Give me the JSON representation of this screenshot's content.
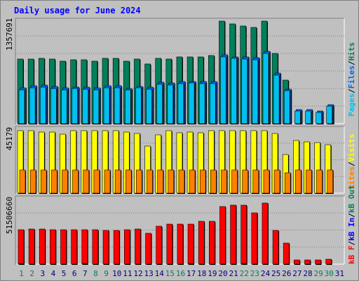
{
  "chart_data": [
    {
      "type": "bar",
      "panel": "hits-files-pages",
      "title": "Daily usage for June 2024",
      "categories": [
        "1",
        "2",
        "3",
        "4",
        "5",
        "6",
        "7",
        "8",
        "9",
        "10",
        "11",
        "12",
        "13",
        "14",
        "15",
        "16",
        "17",
        "18",
        "19",
        "20",
        "21",
        "22",
        "23",
        "24",
        "25",
        "26",
        "27",
        "28",
        "29",
        "30",
        "31"
      ],
      "weekend_days": [
        "1",
        "2",
        "8",
        "9",
        "15",
        "16",
        "22",
        "23",
        "29",
        "30"
      ],
      "ylabel_tick": "1357691",
      "ylim": [
        0,
        1357691
      ],
      "series": [
        {
          "name": "Hits",
          "color": "#00805c",
          "values": [
            858000,
            858000,
            864000,
            852000,
            828000,
            848000,
            844000,
            832000,
            868000,
            868000,
            826000,
            854000,
            786000,
            868000,
            860000,
            880000,
            884000,
            880000,
            902000,
            1357691,
            1318000,
            1297000,
            1272000,
            1357691,
            928000,
            580000,
            0,
            0,
            0,
            0,
            0
          ]
        },
        {
          "name": "Files",
          "color": "#0066f0",
          "values": [
            472000,
            498000,
            509000,
            492000,
            471000,
            487000,
            481000,
            472000,
            498000,
            498000,
            468000,
            494000,
            483000,
            547000,
            535000,
            557000,
            562000,
            554000,
            554000,
            909000,
            886000,
            882000,
            871000,
            954000,
            670000,
            460000,
            190000,
            190000,
            170000,
            248000,
            0
          ]
        },
        {
          "name": "Pages",
          "color": "#00c0f0",
          "values": [
            448000,
            474000,
            485000,
            468000,
            447000,
            463000,
            457000,
            448000,
            474000,
            474000,
            444000,
            470000,
            459000,
            523000,
            511000,
            533000,
            538000,
            530000,
            530000,
            885000,
            862000,
            858000,
            847000,
            930000,
            646000,
            436000,
            170000,
            170000,
            150000,
            230000,
            0
          ]
        }
      ]
    },
    {
      "type": "bar",
      "panel": "visits-sites",
      "ylabel_tick": "45179",
      "ylim": [
        0,
        45179
      ],
      "series": [
        {
          "name": "Visits",
          "color": "#ffff00",
          "values": [
            45179,
            45179,
            44000,
            44000,
            42500,
            45179,
            45179,
            45179,
            45179,
            45179,
            44000,
            43000,
            34000,
            42000,
            45000,
            43500,
            44000,
            43500,
            45179,
            45179,
            45179,
            45179,
            45179,
            45179,
            43000,
            28000,
            38000,
            37000,
            36500,
            35000,
            0
          ]
        },
        {
          "name": "Sites",
          "color": "#ff8000",
          "values": [
            16500,
            16500,
            16500,
            16500,
            16500,
            16500,
            16500,
            16500,
            16500,
            16500,
            16500,
            16500,
            16500,
            17000,
            16500,
            16500,
            16500,
            16500,
            16500,
            16500,
            16500,
            16500,
            16500,
            16500,
            16500,
            14500,
            16500,
            16500,
            16500,
            16500,
            0
          ]
        }
      ]
    },
    {
      "type": "bar",
      "panel": "kbytes",
      "ylabel_tick": "51506660",
      "ylim": [
        0,
        51506660
      ],
      "series": [
        {
          "name": "kB F",
          "color": "#ff0000",
          "values": [
            28200000,
            28800000,
            28800000,
            28400000,
            28400000,
            28300000,
            28600000,
            28400000,
            27900000,
            27500000,
            28300000,
            29000000,
            25600000,
            31200000,
            33000000,
            32900000,
            32700000,
            35100000,
            35500000,
            47700000,
            48500000,
            48500000,
            42000000,
            50400000,
            27800000,
            17500000,
            3300000,
            3300000,
            3300000,
            3800000,
            0
          ]
        },
        {
          "name": "kB In",
          "color": "#0000ff",
          "values": [
            0,
            0,
            0,
            0,
            0,
            0,
            0,
            0,
            0,
            0,
            0,
            0,
            0,
            0,
            0,
            0,
            0,
            0,
            0,
            0,
            0,
            0,
            0,
            0,
            0,
            0,
            0,
            0,
            0,
            0,
            0
          ]
        },
        {
          "name": "kB Out",
          "color": "#00805c",
          "values": [
            400000,
            0,
            0,
            0,
            0,
            0,
            400000,
            0,
            0,
            0,
            0,
            0,
            0,
            0,
            0,
            0,
            400000,
            0,
            0,
            0,
            0,
            400000,
            0,
            0,
            0,
            0,
            0,
            0,
            0,
            0,
            0
          ]
        }
      ]
    }
  ],
  "right_labels": {
    "panel1": [
      "Pages",
      "Files",
      "Hits"
    ],
    "panel1_sep": "/",
    "panel2": [
      "Sites",
      "Visits"
    ],
    "panel2_sep": "/",
    "panel3": [
      "kB F",
      "kB In",
      "kB Out"
    ],
    "panel3_sep": "/"
  },
  "colors": {
    "background": "#c0c0c0",
    "title": "#0000ff",
    "day_label": "#000080",
    "weekend_day_label": "#00805c",
    "frame_light": "#ffffff",
    "frame_dark": "#808080",
    "gridline": "#808080"
  }
}
